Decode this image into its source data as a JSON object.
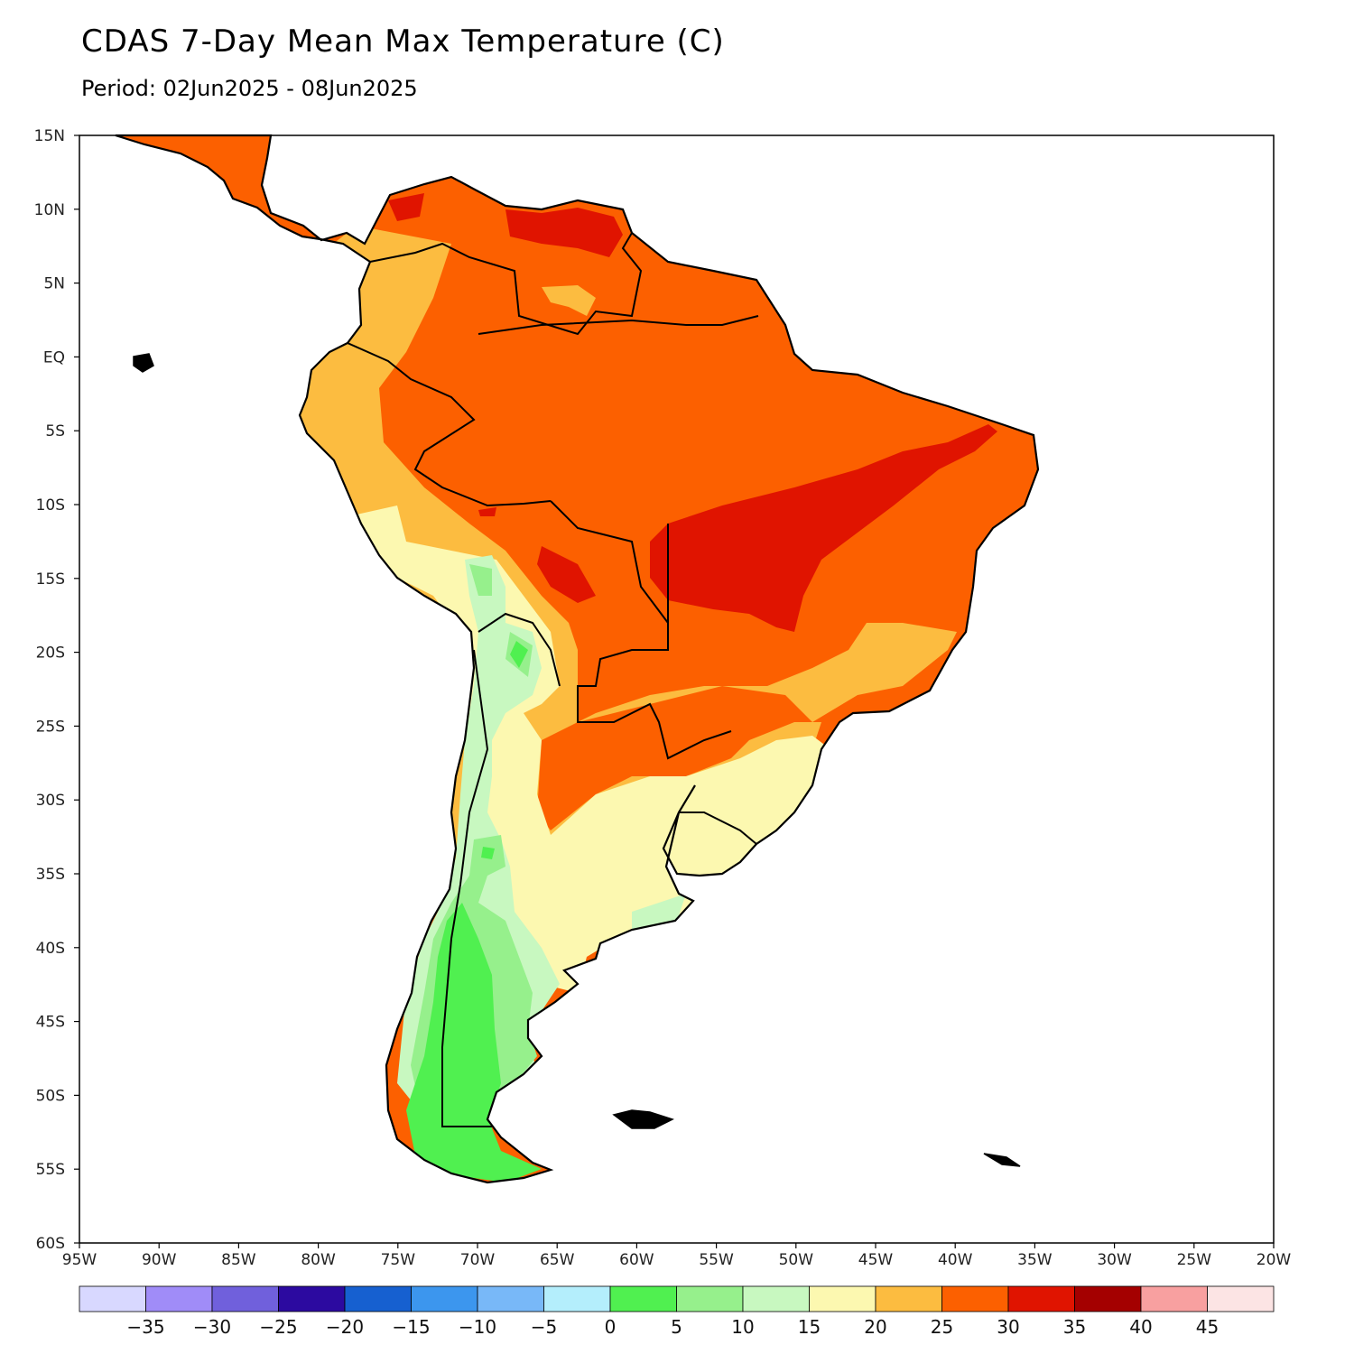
{
  "title": "CDAS 7-Day Mean Max Temperature (C)",
  "subtitle": "Period: 02Jun2025 - 08Jun2025",
  "map": {
    "region": "South America",
    "projection": "lat-lon",
    "lon_range": [
      -95,
      -20
    ],
    "lat_range": [
      -60,
      15
    ]
  },
  "axes": {
    "lat_ticks": [
      "15N",
      "10N",
      "5N",
      "EQ",
      "5S",
      "10S",
      "15S",
      "20S",
      "25S",
      "30S",
      "35S",
      "40S",
      "45S",
      "50S",
      "55S",
      "60S"
    ],
    "lon_ticks": [
      "95W",
      "90W",
      "85W",
      "80W",
      "75W",
      "70W",
      "65W",
      "60W",
      "55W",
      "50W",
      "45W",
      "40W",
      "35W",
      "30W",
      "25W",
      "20W"
    ]
  },
  "legend": {
    "colors": [
      "#d8d8ff",
      "#a08cf8",
      "#7060dc",
      "#2c0aa0",
      "#1660d0",
      "#3c96ee",
      "#78b8f8",
      "#b4eefc",
      "#50f050",
      "#96f08c",
      "#c8f8c0",
      "#fcf8b0",
      "#fcbc40",
      "#fc6000",
      "#e01400",
      "#a40000",
      "#f8a0a0",
      "#fce4e4"
    ],
    "labels": [
      "-35",
      "-30",
      "-25",
      "-20",
      "-15",
      "-10",
      "-5",
      "0",
      "5",
      "10",
      "15",
      "20",
      "25",
      "30",
      "35",
      "40",
      "45"
    ]
  },
  "colors": {
    "ocean": "#ffffff",
    "t30_35": "#fc6000",
    "t35_40": "#e01400",
    "t25_30": "#fcbc40",
    "t20_25": "#fcf8b0",
    "t15_20": "#c8f8c0",
    "t10_15": "#96f08c",
    "t5_10": "#50f050"
  }
}
